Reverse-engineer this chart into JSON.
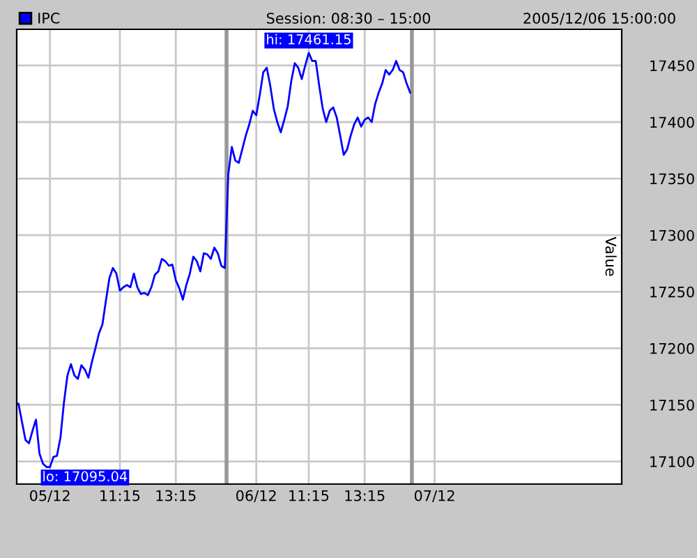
{
  "chart_data": {
    "type": "line",
    "title": "Session: 08:30 – 15:00",
    "subtitle": "2005/12/06 15:00:00",
    "ylabel": "Value",
    "categories": [
      null,
      null,
      null,
      null,
      null,
      null,
      null,
      null,
      null,
      "05/12",
      null,
      null,
      null,
      null,
      null,
      null,
      null,
      null,
      null,
      null,
      null,
      null,
      null,
      null,
      null,
      null,
      null,
      null,
      null,
      "11:15",
      null,
      null,
      null,
      null,
      null,
      null,
      null,
      null,
      null,
      null,
      null,
      null,
      null,
      null,
      null,
      "13:15",
      null,
      null,
      null,
      null,
      null,
      null,
      null,
      null,
      null,
      null,
      null,
      null,
      null,
      null,
      null,
      null,
      null,
      null,
      null,
      null,
      null,
      null,
      "06/12",
      null,
      null,
      null,
      null,
      null,
      null,
      null,
      null,
      null,
      null,
      null,
      null,
      null,
      null,
      "11:15",
      null,
      null,
      null,
      null,
      null,
      null,
      null,
      null,
      null,
      null,
      null,
      null,
      null,
      null,
      null,
      "13:15",
      null,
      null,
      null,
      null,
      null,
      null,
      null,
      null,
      null,
      null,
      null,
      null,
      null,
      null,
      null,
      null,
      null,
      null,
      null,
      "07/12",
      null,
      null,
      null,
      null,
      null,
      null,
      null,
      null,
      null,
      null,
      null,
      null,
      null,
      null,
      null,
      null,
      null,
      null,
      null,
      null,
      null,
      null,
      null,
      null,
      null,
      null,
      null,
      null,
      null,
      null,
      null,
      null,
      null,
      null,
      null,
      null,
      null,
      null,
      null,
      null,
      null,
      null,
      null,
      null,
      null,
      null,
      null,
      null,
      null,
      null,
      null,
      null,
      null
    ],
    "series": [
      {
        "name": "IPC",
        "color": "#0000ff",
        "values": [
          17151,
          17135,
          17119,
          17116,
          17127,
          17137,
          17107,
          17098,
          17095.04,
          17095,
          17104,
          17105,
          17121,
          17152,
          17176,
          17186,
          17176,
          17173,
          17185,
          17181,
          17174,
          17188,
          17200,
          17213,
          17221,
          17242,
          17262,
          17271,
          17266,
          17251,
          17254,
          17256,
          17254,
          17266,
          17254,
          17248,
          17249,
          17247,
          17254,
          17265,
          17268,
          17279,
          17277,
          17273,
          17274,
          17260,
          17253,
          17243,
          17256,
          17266,
          17281,
          17277,
          17268,
          17284,
          17283,
          17279,
          17289,
          17284,
          17273,
          17271,
          17354,
          17378,
          17366,
          17364,
          17376,
          17388,
          17398,
          17410,
          17406,
          17424,
          17444,
          17448,
          17432,
          17412,
          17400,
          17391,
          17402,
          17414,
          17436,
          17452,
          17448,
          17438,
          17450,
          17461.15,
          17454,
          17454,
          17432,
          17412,
          17400,
          17410,
          17413,
          17404,
          17388,
          17371,
          17376,
          17388,
          17398,
          17404,
          17396,
          17402,
          17404,
          17400,
          17416,
          17426,
          17434,
          17446,
          17442,
          17446,
          17454,
          17446,
          17444,
          17434,
          17426,
          null,
          null,
          null,
          null,
          null,
          null,
          null,
          null,
          null,
          null,
          null,
          null,
          null,
          null,
          null,
          null,
          null,
          null,
          null,
          null,
          null,
          null,
          null,
          null,
          null,
          null,
          null,
          null,
          null,
          null,
          null,
          null,
          null,
          null,
          null,
          null,
          null,
          null,
          null,
          null,
          null,
          null,
          null,
          null,
          null,
          null,
          null,
          null,
          null,
          null,
          null,
          null,
          null,
          null,
          null,
          null,
          null,
          null,
          null,
          null
        ]
      }
    ],
    "ylim": [
      17080,
      17482
    ],
    "yticks": [
      17100,
      17150,
      17200,
      17250,
      17300,
      17350,
      17400,
      17450
    ],
    "annotations": [
      "hi: 17461.15",
      "lo: 17095.04"
    ],
    "grid": true,
    "legend": "top left",
    "marker": "none",
    "line_style": "solid"
  }
}
